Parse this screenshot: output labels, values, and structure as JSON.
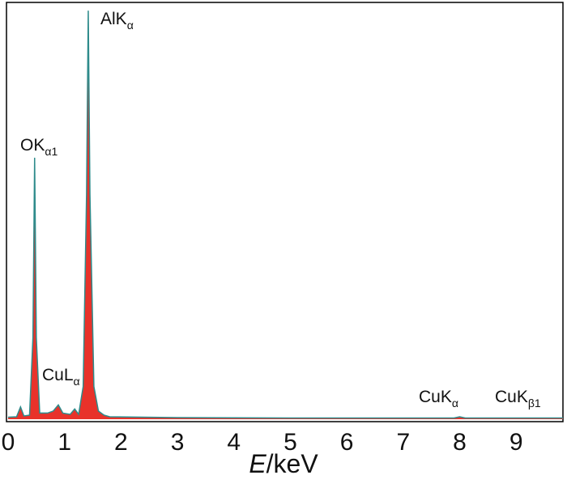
{
  "chart_data": {
    "type": "area",
    "xlabel": {
      "symbol": "E",
      "unit": "/keV"
    },
    "x": [
      0,
      0.15,
      0.22,
      0.28,
      0.38,
      0.44,
      0.47,
      0.5,
      0.56,
      0.7,
      0.8,
      0.89,
      0.97,
      1.1,
      1.18,
      1.25,
      1.33,
      1.39,
      1.42,
      1.45,
      1.52,
      1.6,
      1.7,
      1.8,
      3,
      5,
      7,
      7.9,
      8.0,
      8.1,
      9,
      9.83
    ],
    "values": [
      0.5,
      0.6,
      3,
      0.8,
      1,
      20,
      64,
      20,
      1.5,
      1.5,
      2,
      3.5,
      1.5,
      1.2,
      2.5,
      1.2,
      8,
      55,
      100,
      55,
      8,
      2,
      1,
      0.6,
      0.4,
      0.3,
      0.3,
      0.3,
      0.6,
      0.3,
      0.3,
      0.3
    ],
    "color": "#e8322a",
    "line_color": "#2e8b8b",
    "xlim": [
      0,
      9.83
    ],
    "ylim": [
      0,
      102
    ],
    "xticks": [
      0,
      1,
      2,
      3,
      4,
      5,
      6,
      7,
      8,
      9
    ],
    "annotations": [
      {
        "text": "AlK",
        "sub": "α"
      },
      {
        "text": "OK",
        "sub": "α1"
      },
      {
        "text": "CuL",
        "sub": "α"
      },
      {
        "text": "CuK",
        "sub": "α"
      },
      {
        "text": "CuK",
        "sub": "β1"
      }
    ]
  }
}
